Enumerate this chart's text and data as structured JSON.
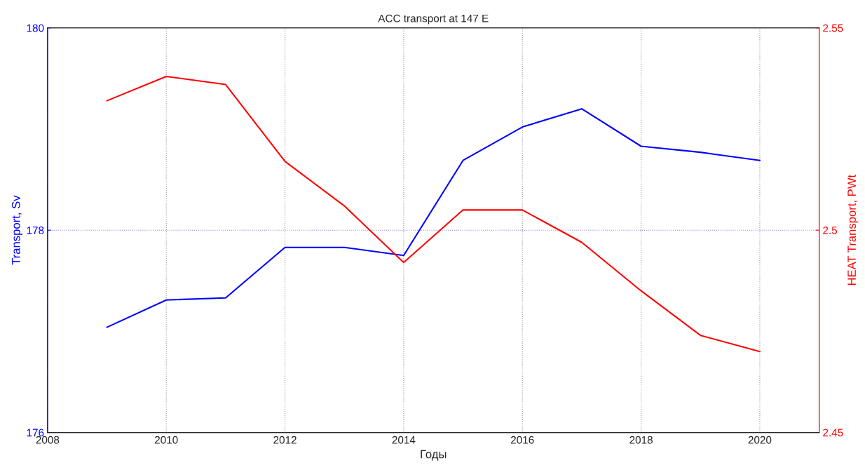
{
  "chart_data": {
    "type": "line",
    "title": "ACC transport at 147 E",
    "xlabel": "Годы",
    "ylabel": "Transport, Sv",
    "y2label": "HEAT Transport, PWt",
    "x": [
      2009,
      2010,
      2011,
      2012,
      2013,
      2014,
      2015,
      2016,
      2017,
      2018,
      2019,
      2020
    ],
    "series": [
      {
        "color": "#0000ff",
        "values": [
          177.04,
          177.31,
          177.33,
          177.83,
          177.83,
          177.75,
          178.69,
          179.02,
          179.2,
          178.83,
          178.77,
          178.69
        ]
      },
      {
        "color": "#ff0000",
        "axis": "y2",
        "values": [
          2.532,
          2.538,
          2.536,
          2.517,
          2.506,
          2.492,
          2.505,
          2.505,
          2.497,
          2.485,
          2.474,
          2.47
        ]
      }
    ],
    "xlim": [
      2008,
      2021
    ],
    "xticks": [
      2008,
      2010,
      2012,
      2014,
      2016,
      2018,
      2020
    ],
    "ylim": [
      176,
      180
    ],
    "yticks": [
      176,
      178,
      180
    ],
    "y2lim": [
      2.45,
      2.55
    ],
    "y2ticks": [
      2.45,
      2.5,
      2.55
    ],
    "grid": "x",
    "ref_lines": [
      {
        "axis": "y",
        "value": 178,
        "color": "#8080ff",
        "line_style": "dotted"
      }
    ],
    "line_style": "solid",
    "marker": "none"
  }
}
